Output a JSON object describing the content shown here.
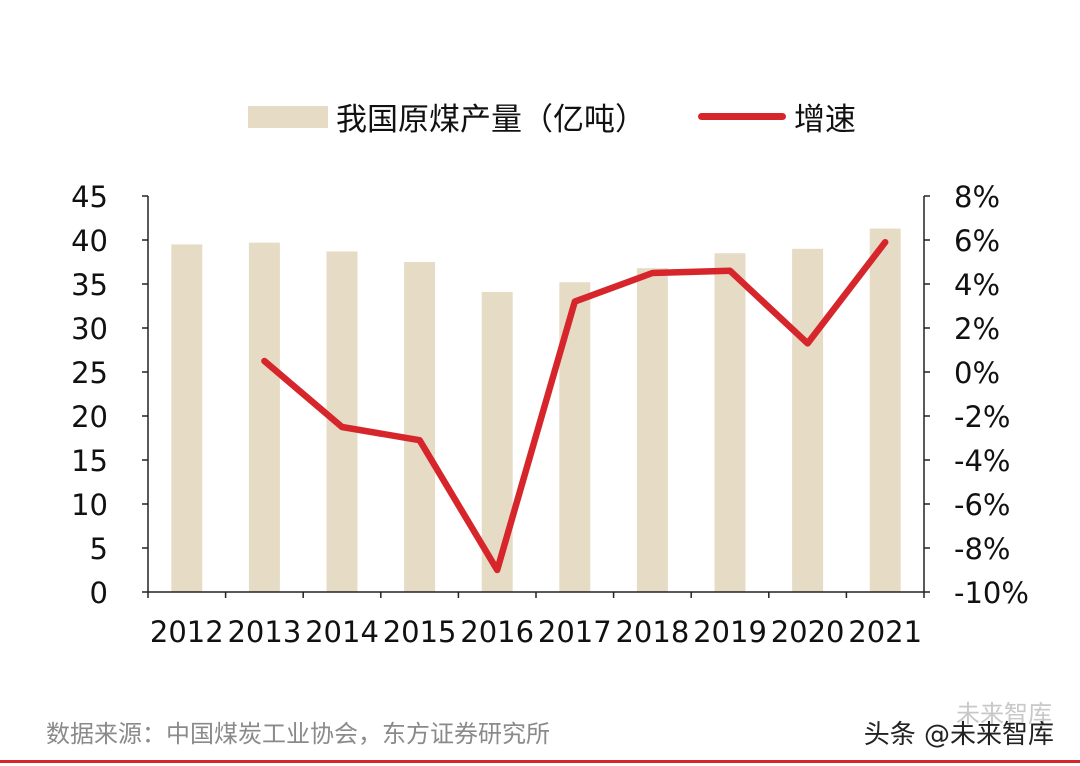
{
  "legend": {
    "bar_label": "我国原煤产量（亿吨）",
    "line_label": "增速"
  },
  "source": "数据来源：中国煤炭工业协会，东方证券研究所",
  "watermark": {
    "main": "头条 @未来智库",
    "faint": "未来智库"
  },
  "colors": {
    "bar": "#e6dcc6",
    "line": "#d7262b",
    "axis": "#222222"
  },
  "chart_data": {
    "type": "bar",
    "categories": [
      "2012",
      "2013",
      "2014",
      "2015",
      "2016",
      "2017",
      "2018",
      "2019",
      "2020",
      "2021"
    ],
    "series": [
      {
        "name": "我国原煤产量（亿吨）",
        "type": "bar",
        "axis": "left",
        "values": [
          39.5,
          39.7,
          38.7,
          37.5,
          34.1,
          35.2,
          36.8,
          38.5,
          39.0,
          41.3
        ]
      },
      {
        "name": "增速",
        "type": "line",
        "axis": "right",
        "values": [
          null,
          0.5,
          -2.5,
          -3.1,
          -9.0,
          3.2,
          4.5,
          4.6,
          1.3,
          5.9
        ]
      }
    ],
    "y_left": {
      "min": 0,
      "max": 45,
      "ticks": [
        0,
        5,
        10,
        15,
        20,
        25,
        30,
        35,
        40,
        45
      ]
    },
    "y_right": {
      "min": -10,
      "max": 8,
      "ticks": [
        -10,
        -8,
        -6,
        -4,
        -2,
        0,
        2,
        4,
        6,
        8
      ],
      "unit": "%"
    },
    "title": "",
    "xlabel": "",
    "ylabel": ""
  }
}
